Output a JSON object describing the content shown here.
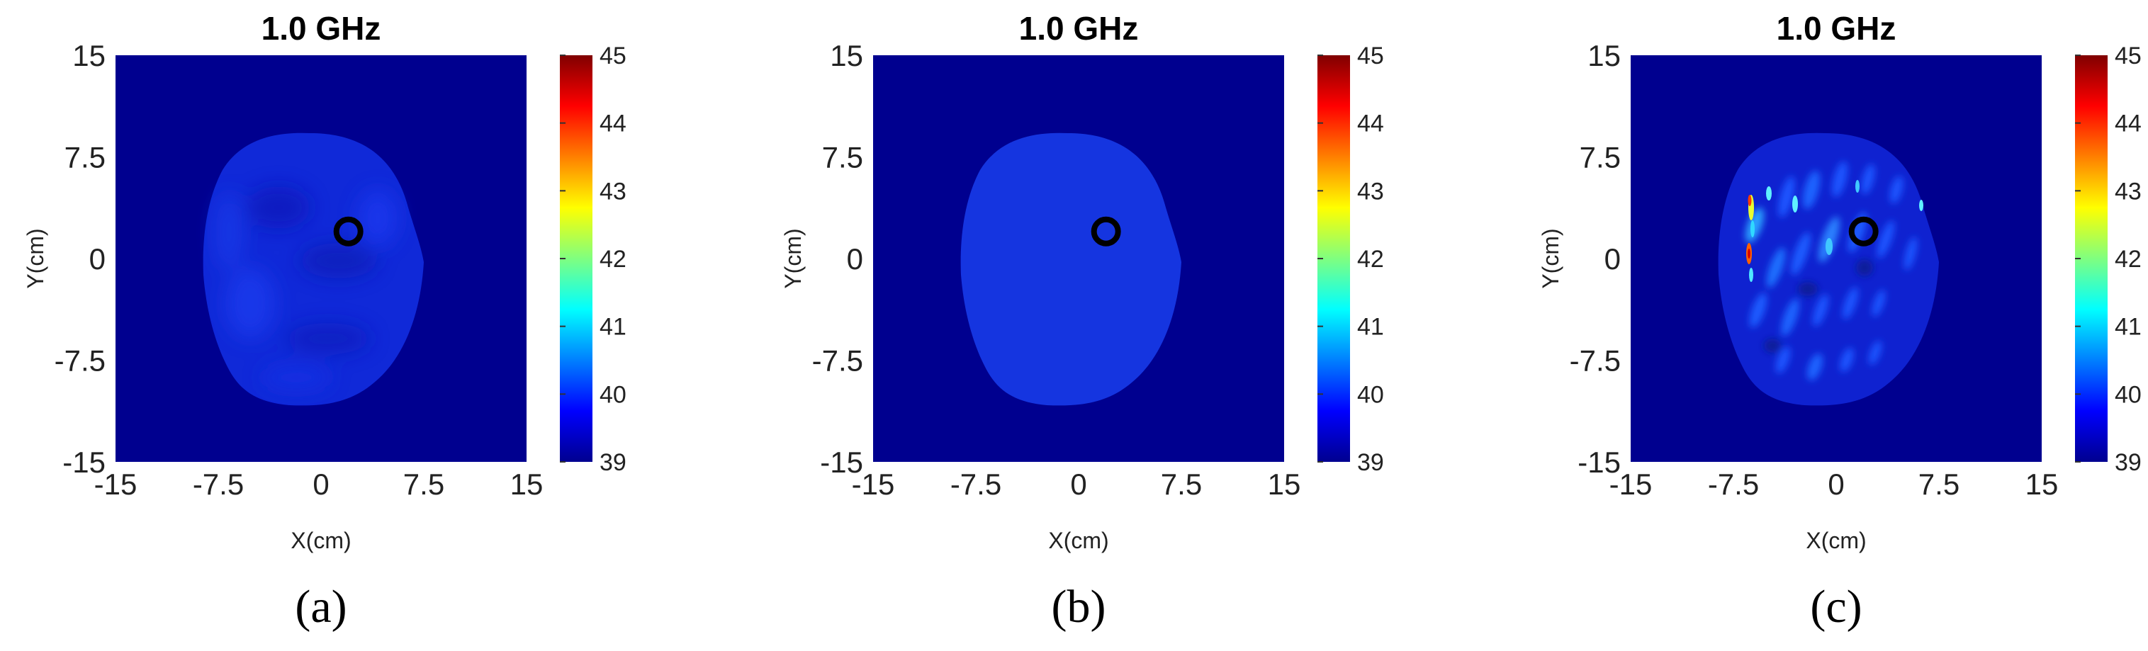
{
  "chart_data": [
    {
      "type": "heatmap",
      "panel_label": "(a)",
      "title": "1.0 GHz",
      "xlabel": "X(cm)",
      "ylabel": "Y(cm)",
      "xlim": [
        -15,
        15
      ],
      "ylim": [
        -15,
        15
      ],
      "xticks": [
        "-15",
        "-7.5",
        "0",
        "7.5",
        "15"
      ],
      "yticks": [
        "15",
        "7.5",
        "0",
        "-7.5",
        "-15"
      ],
      "colorbar": {
        "min": 39,
        "max": 45,
        "ticks": [
          "45",
          "44",
          "43",
          "42",
          "41",
          "40",
          "39"
        ],
        "colormap": "jet"
      },
      "background_value": 39,
      "head_region": {
        "center": [
          0.5,
          0
        ],
        "x_extent": [
          -7,
          8
        ],
        "y_extent": [
          -9.5,
          9.5
        ],
        "typical_value": 39.6
      },
      "marker": {
        "x": 2,
        "y": 2,
        "shape": "circle"
      }
    },
    {
      "type": "heatmap",
      "panel_label": "(b)",
      "title": "1.0 GHz",
      "xlabel": "X(cm)",
      "ylabel": "Y(cm)",
      "xlim": [
        -15,
        15
      ],
      "ylim": [
        -15,
        15
      ],
      "xticks": [
        "-15",
        "-7.5",
        "0",
        "7.5",
        "15"
      ],
      "yticks": [
        "15",
        "7.5",
        "0",
        "-7.5",
        "-15"
      ],
      "colorbar": {
        "min": 39,
        "max": 45,
        "ticks": [
          "45",
          "44",
          "43",
          "42",
          "41",
          "40",
          "39"
        ],
        "colormap": "jet"
      },
      "background_value": 39,
      "head_region": {
        "center": [
          0.5,
          0
        ],
        "x_extent": [
          -7,
          8
        ],
        "y_extent": [
          -9.5,
          9.5
        ],
        "typical_value": 39.7
      },
      "marker": {
        "x": 2,
        "y": 2,
        "shape": "circle"
      }
    },
    {
      "type": "heatmap",
      "panel_label": "(c)",
      "title": "1.0 GHz",
      "xlabel": "X(cm)",
      "ylabel": "Y(cm)",
      "xlim": [
        -15,
        15
      ],
      "ylim": [
        -15,
        15
      ],
      "xticks": [
        "-15",
        "-7.5",
        "0",
        "7.5",
        "15"
      ],
      "yticks": [
        "15",
        "7.5",
        "0",
        "-7.5",
        "-15"
      ],
      "colorbar": {
        "min": 39,
        "max": 45,
        "ticks": [
          "45",
          "44",
          "43",
          "42",
          "41",
          "40",
          "39"
        ],
        "colormap": "jet"
      },
      "background_value": 39,
      "head_region": {
        "center": [
          0.5,
          0
        ],
        "x_extent": [
          -7,
          8
        ],
        "y_extent": [
          -9.5,
          9.5
        ],
        "typical_value": 39.8
      },
      "marker": {
        "x": 2,
        "y": 2,
        "shape": "circle"
      }
    }
  ],
  "colors": {
    "background": "#00008f",
    "head_a": "#1029d8",
    "head_b": "#1535e0",
    "head_c": "#0f22d0",
    "marker": "#000000"
  }
}
